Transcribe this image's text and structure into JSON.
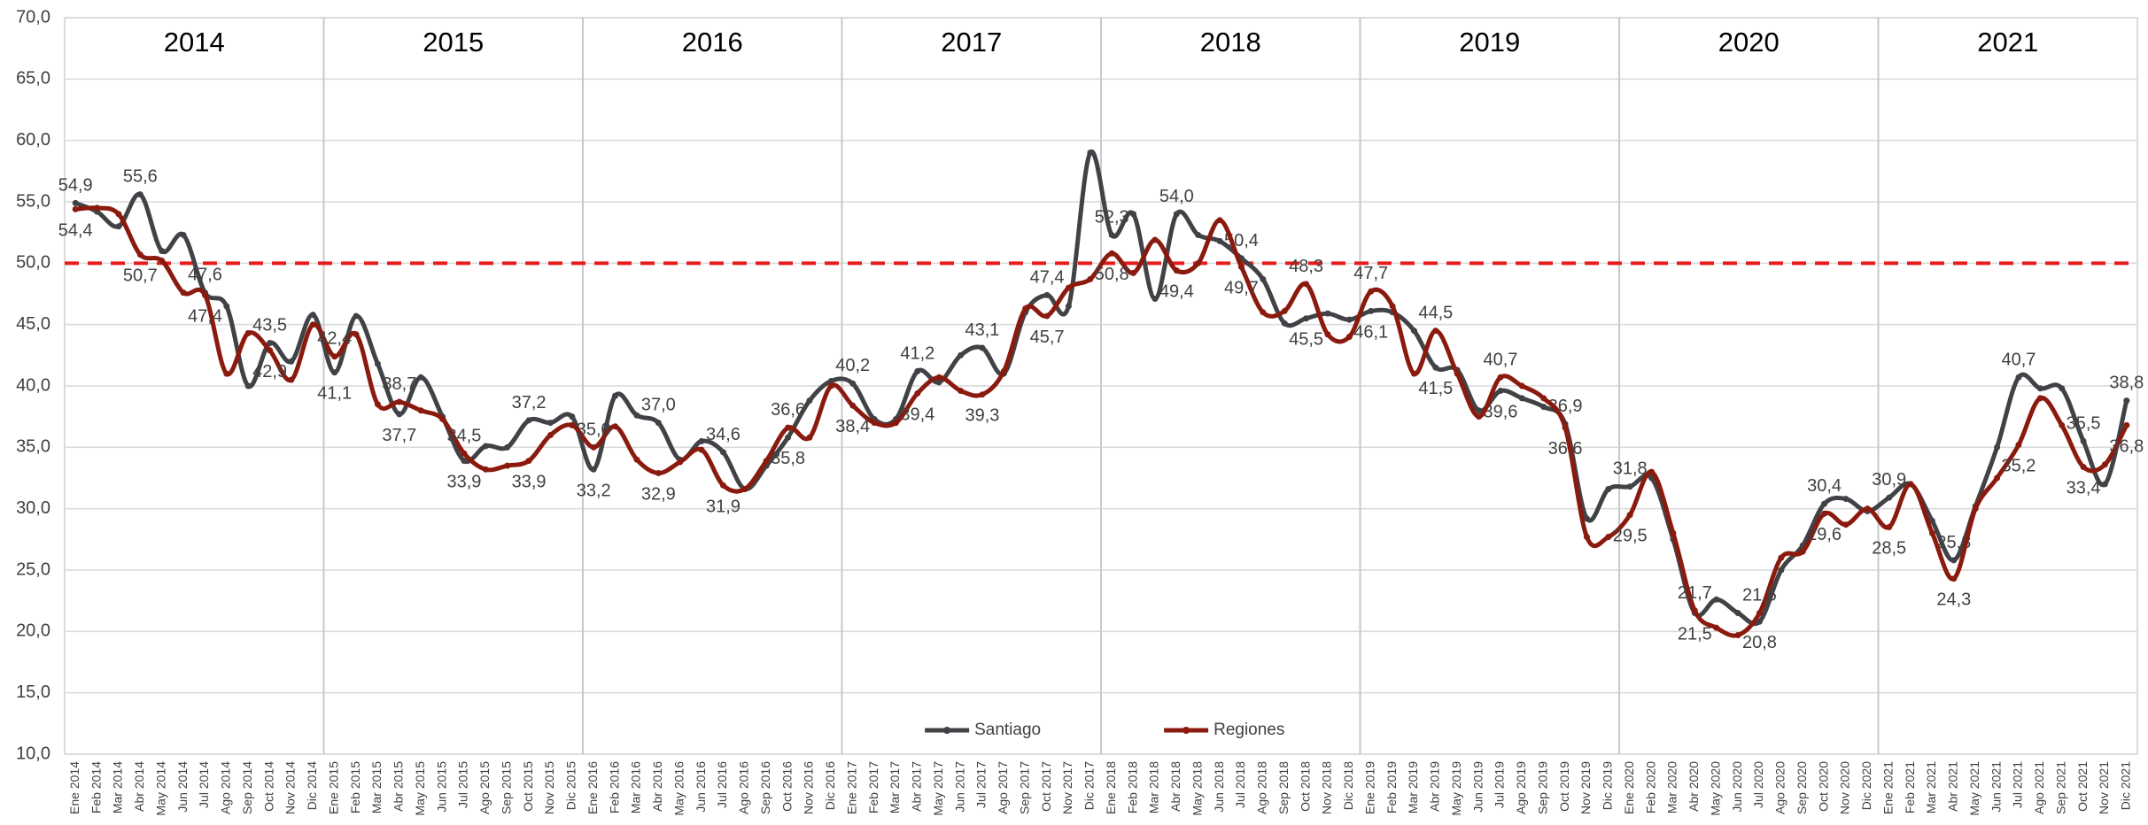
{
  "chart_data": {
    "type": "line",
    "categories": [
      "Ene 2014",
      "Feb 2014",
      "Mar 2014",
      "Abr 2014",
      "May 2014",
      "Jun 2014",
      "Jul 2014",
      "Ago 2014",
      "Sep 2014",
      "Oct 2014",
      "Nov 2014",
      "Dic 2014",
      "Ene 2015",
      "Feb 2015",
      "Mar 2015",
      "Abr 2015",
      "May 2015",
      "Jun 2015",
      "Jul 2015",
      "Ago 2015",
      "Sep 2015",
      "Oct 2015",
      "Nov 2015",
      "Dic 2015",
      "Ene 2016",
      "Feb 2016",
      "Mar 2016",
      "Abr 2016",
      "May 2016",
      "Jun 2016",
      "Jul 2016",
      "Ago 2016",
      "Sep 2016",
      "Oct 2016",
      "Nov 2016",
      "Dic 2016",
      "Ene 2017",
      "Feb 2017",
      "Mar 2017",
      "Abr 2017",
      "May 2017",
      "Jun 2017",
      "Jul 2017",
      "Ago 2017",
      "Sep 2017",
      "Oct 2017",
      "Nov 2017",
      "Dic 2017",
      "Ene 2018",
      "Feb 2018",
      "Mar 2018",
      "Abr 2018",
      "May 2018",
      "Jun 2018",
      "Jul 2018",
      "Ago 2018",
      "Sep 2018",
      "Oct 2018",
      "Nov 2018",
      "Dic 2018",
      "Ene 2019",
      "Feb 2019",
      "Mar 2019",
      "Abr 2019",
      "May 2019",
      "Jun 2019",
      "Jul 2019",
      "Ago 2019",
      "Sep 2019",
      "Oct 2019",
      "Nov 2019",
      "Dic 2019",
      "Ene 2020",
      "Feb 2020",
      "Mar 2020",
      "Abr 2020",
      "May 2020",
      "Jun 2020",
      "Jul 2020",
      "Ago 2020",
      "Sep 2020",
      "Oct 2020",
      "Nov 2020",
      "Dic 2020",
      "Ene 2021",
      "Feb 2021",
      "Mar 2021",
      "Abr 2021",
      "May 2021",
      "Jun 2021",
      "Jul 2021",
      "Ago 2021",
      "Sep 2021",
      "Oct 2021",
      "Nov 2021",
      "Dic 2021"
    ],
    "series": [
      {
        "name": "Santiago",
        "color": "#404246",
        "values": [
          54.9,
          54.2,
          53.0,
          55.6,
          51.0,
          52.3,
          47.6,
          46.5,
          40.0,
          43.5,
          42.0,
          45.8,
          41.1,
          45.7,
          41.8,
          37.7,
          40.7,
          37.5,
          33.9,
          35.1,
          35.0,
          37.2,
          37.0,
          37.5,
          33.2,
          39.2,
          37.6,
          37.0,
          34.0,
          35.5,
          34.6,
          31.6,
          33.5,
          35.8,
          38.8,
          40.4,
          40.2,
          37.3,
          37.3,
          41.2,
          40.3,
          42.5,
          43.1,
          41.0,
          46.0,
          47.4,
          46.5,
          59.0,
          52.3,
          54.0,
          47.1,
          54.0,
          52.3,
          51.8,
          50.4,
          48.7,
          45.1,
          45.5,
          45.9,
          45.4,
          46.1,
          46.0,
          44.5,
          41.5,
          41.3,
          38.0,
          39.6,
          39.0,
          38.3,
          36.9,
          29.2,
          31.6,
          31.8,
          32.5,
          27.5,
          21.5,
          22.6,
          21.5,
          20.8,
          25.0,
          27.0,
          30.4,
          30.8,
          29.8,
          30.9,
          32.0,
          29.0,
          25.8,
          30.2,
          35.0,
          40.7,
          39.8,
          39.8,
          35.5,
          32.0,
          38.8
        ],
        "value_labels": [
          "54,9",
          null,
          null,
          "55,6",
          null,
          null,
          "47,6",
          null,
          null,
          "43,5",
          null,
          null,
          "41,1",
          null,
          null,
          "37,7",
          null,
          null,
          "33,9",
          null,
          null,
          "37,2",
          null,
          null,
          "33,2",
          null,
          null,
          "37,0",
          null,
          null,
          "34,6",
          null,
          null,
          "35,8",
          null,
          null,
          "40,2",
          null,
          null,
          "41,2",
          null,
          null,
          "43,1",
          null,
          null,
          "47,4",
          null,
          null,
          "52,3",
          null,
          null,
          "54,0",
          null,
          null,
          "50,4",
          null,
          null,
          "45,5",
          null,
          null,
          "46,1",
          null,
          null,
          "41,5",
          null,
          null,
          "39,6",
          null,
          null,
          "36,9",
          null,
          null,
          "31,8",
          null,
          null,
          "21,5",
          null,
          null,
          "20,8",
          null,
          null,
          "30,4",
          null,
          null,
          "30,9",
          null,
          null,
          "25,8",
          null,
          null,
          "40,7",
          null,
          null,
          "35,5",
          null,
          "38,8"
        ]
      },
      {
        "name": "Regiones",
        "color": "#8b1a0e",
        "values": [
          54.4,
          54.5,
          54.0,
          50.7,
          50.2,
          47.6,
          47.4,
          41.0,
          44.3,
          42.9,
          40.5,
          45.0,
          42.4,
          44.2,
          38.5,
          38.7,
          38.0,
          37.3,
          34.5,
          33.2,
          33.5,
          33.9,
          36.0,
          36.8,
          35.0,
          36.7,
          34.0,
          32.9,
          33.8,
          34.8,
          31.9,
          31.6,
          33.9,
          36.6,
          35.8,
          40.0,
          38.4,
          37.0,
          37.0,
          39.4,
          40.7,
          39.6,
          39.3,
          41.2,
          46.3,
          45.7,
          48.0,
          48.7,
          50.8,
          49.2,
          51.9,
          49.4,
          50.0,
          53.5,
          49.7,
          46.0,
          46.1,
          48.3,
          44.2,
          44.0,
          47.7,
          46.5,
          41.0,
          44.5,
          41.0,
          37.5,
          40.7,
          40.0,
          39.0,
          36.6,
          27.7,
          27.7,
          29.5,
          33.0,
          28.0,
          21.7,
          20.3,
          19.7,
          21.5,
          26.0,
          26.5,
          29.6,
          28.7,
          30.0,
          28.5,
          32.0,
          28.0,
          24.3,
          30.0,
          32.5,
          35.2,
          39.0,
          36.8,
          33.4,
          33.6,
          36.8
        ],
        "value_labels": [
          "54,4",
          null,
          null,
          "50,7",
          null,
          null,
          "47,4",
          null,
          null,
          "42,9",
          null,
          null,
          "42,4",
          null,
          null,
          "38,7",
          null,
          null,
          "34,5",
          null,
          null,
          "33,9",
          null,
          null,
          "35,0",
          null,
          null,
          "32,9",
          null,
          null,
          "31,9",
          null,
          null,
          "36,6",
          null,
          null,
          "38,4",
          null,
          null,
          "39,4",
          null,
          null,
          "39,3",
          null,
          null,
          "45,7",
          null,
          null,
          "50,8",
          null,
          null,
          "49,4",
          null,
          null,
          "49,7",
          null,
          null,
          "48,3",
          null,
          null,
          "47,7",
          null,
          null,
          "44,5",
          null,
          null,
          "40,7",
          null,
          null,
          "36,6",
          null,
          null,
          "29,5",
          null,
          null,
          "21,7",
          null,
          null,
          "21,5",
          null,
          null,
          "29,6",
          null,
          null,
          "28,5",
          null,
          null,
          "24,3",
          null,
          null,
          "35,2",
          null,
          null,
          "33,4",
          null,
          "36,8"
        ]
      }
    ],
    "annotations": [
      "2014",
      "2015",
      "2016",
      "2017",
      "2018",
      "2019",
      "2020",
      "2021"
    ],
    "reference_line": {
      "value": 50,
      "color": "#e81c1c",
      "style": "dashed"
    },
    "ylim": [
      10,
      70
    ],
    "yticks": [
      {
        "value": 10,
        "label": "10,0"
      },
      {
        "value": 15,
        "label": "15,0"
      },
      {
        "value": 20,
        "label": "20,0"
      },
      {
        "value": 25,
        "label": "25,0"
      },
      {
        "value": 30,
        "label": "30,0"
      },
      {
        "value": 35,
        "label": "35,0"
      },
      {
        "value": 40,
        "label": "40,0"
      },
      {
        "value": 45,
        "label": "45,0"
      },
      {
        "value": 50,
        "label": "50,0"
      },
      {
        "value": 55,
        "label": "55,0"
      },
      {
        "value": 60,
        "label": "60,0"
      },
      {
        "value": 65,
        "label": "65,0"
      },
      {
        "value": 70,
        "label": "70,0"
      }
    ],
    "grid": true,
    "legend": "bottom"
  }
}
